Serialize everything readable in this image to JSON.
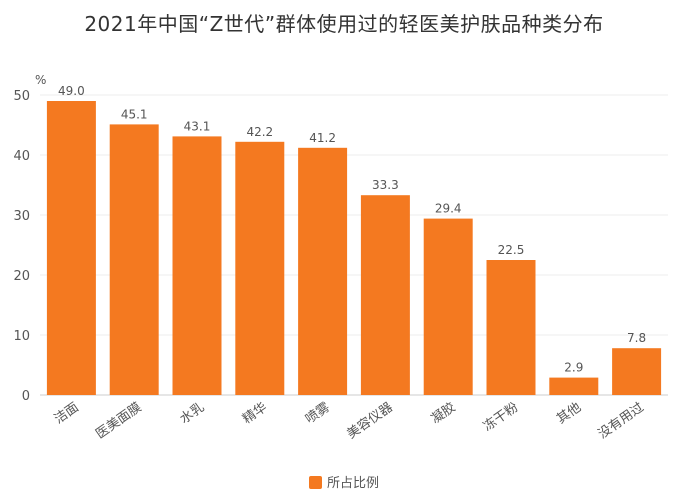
{
  "chart_data": {
    "type": "bar",
    "title": "2021年中国“Z世代”群体使用过的轻医美护肤品种类分布",
    "yunit": "%",
    "ylim": [
      0,
      50
    ],
    "yticks": [
      0,
      10,
      20,
      30,
      40,
      50
    ],
    "grid": true,
    "legend_position": "bottom",
    "categories": [
      "洁面",
      "医美面膜",
      "水乳",
      "精华",
      "喷雾",
      "美容仪器",
      "凝胶",
      "冻干粉",
      "其他",
      "没有用过"
    ],
    "series": [
      {
        "name": "所占比例",
        "color": "#f47920",
        "values": [
          49.0,
          45.1,
          43.1,
          42.2,
          41.2,
          33.3,
          29.4,
          22.5,
          2.9,
          7.8
        ],
        "labels": [
          "49.0",
          "45.1",
          "43.1",
          "42.2",
          "41.2",
          "33.3",
          "29.4",
          "22.5",
          "2.9",
          "7.8"
        ]
      }
    ]
  }
}
